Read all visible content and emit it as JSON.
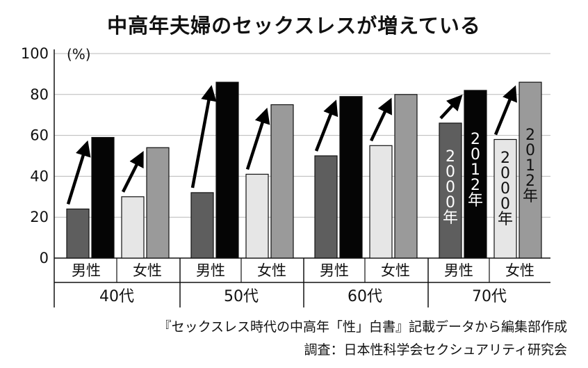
{
  "chart_data": {
    "type": "bar",
    "title": "中高年夫婦のセックスレスが増えている",
    "ylabel": "(%)",
    "ylim": [
      0,
      100
    ],
    "yticks": [
      "0",
      "20",
      "40",
      "60",
      "80",
      "100"
    ],
    "age_groups": [
      "40代",
      "50代",
      "60代",
      "70代"
    ],
    "genders": [
      "男性",
      "女性"
    ],
    "series": [
      {
        "name": "2000年",
        "values": {
          "40代": {
            "男性": 24,
            "女性": 30
          },
          "50代": {
            "男性": 32,
            "女性": 41
          },
          "60代": {
            "男性": 50,
            "女性": 55
          },
          "70代": {
            "男性": 66,
            "女性": 58
          }
        }
      },
      {
        "name": "2012年",
        "values": {
          "40代": {
            "男性": 59,
            "女性": 54
          },
          "50代": {
            "男性": 86,
            "女性": 75
          },
          "60代": {
            "男性": 79,
            "女性": 80
          },
          "70代": {
            "男性": 82,
            "女性": 86
          }
        }
      }
    ],
    "bar_labels": {
      "year2000": "2000年",
      "year2012": "2012年"
    },
    "colors": {
      "male_2000": "#5e5e5e",
      "male_2012": "#050505",
      "female_2000": "#e6e6e6",
      "female_2012": "#9a9a9a"
    },
    "grid": true
  },
  "source": {
    "line1": "『セックスレス時代の中高年「性」白書』記載データから編集部作成",
    "line2": "調査：日本性科学会セクシュアリティ研究会"
  }
}
